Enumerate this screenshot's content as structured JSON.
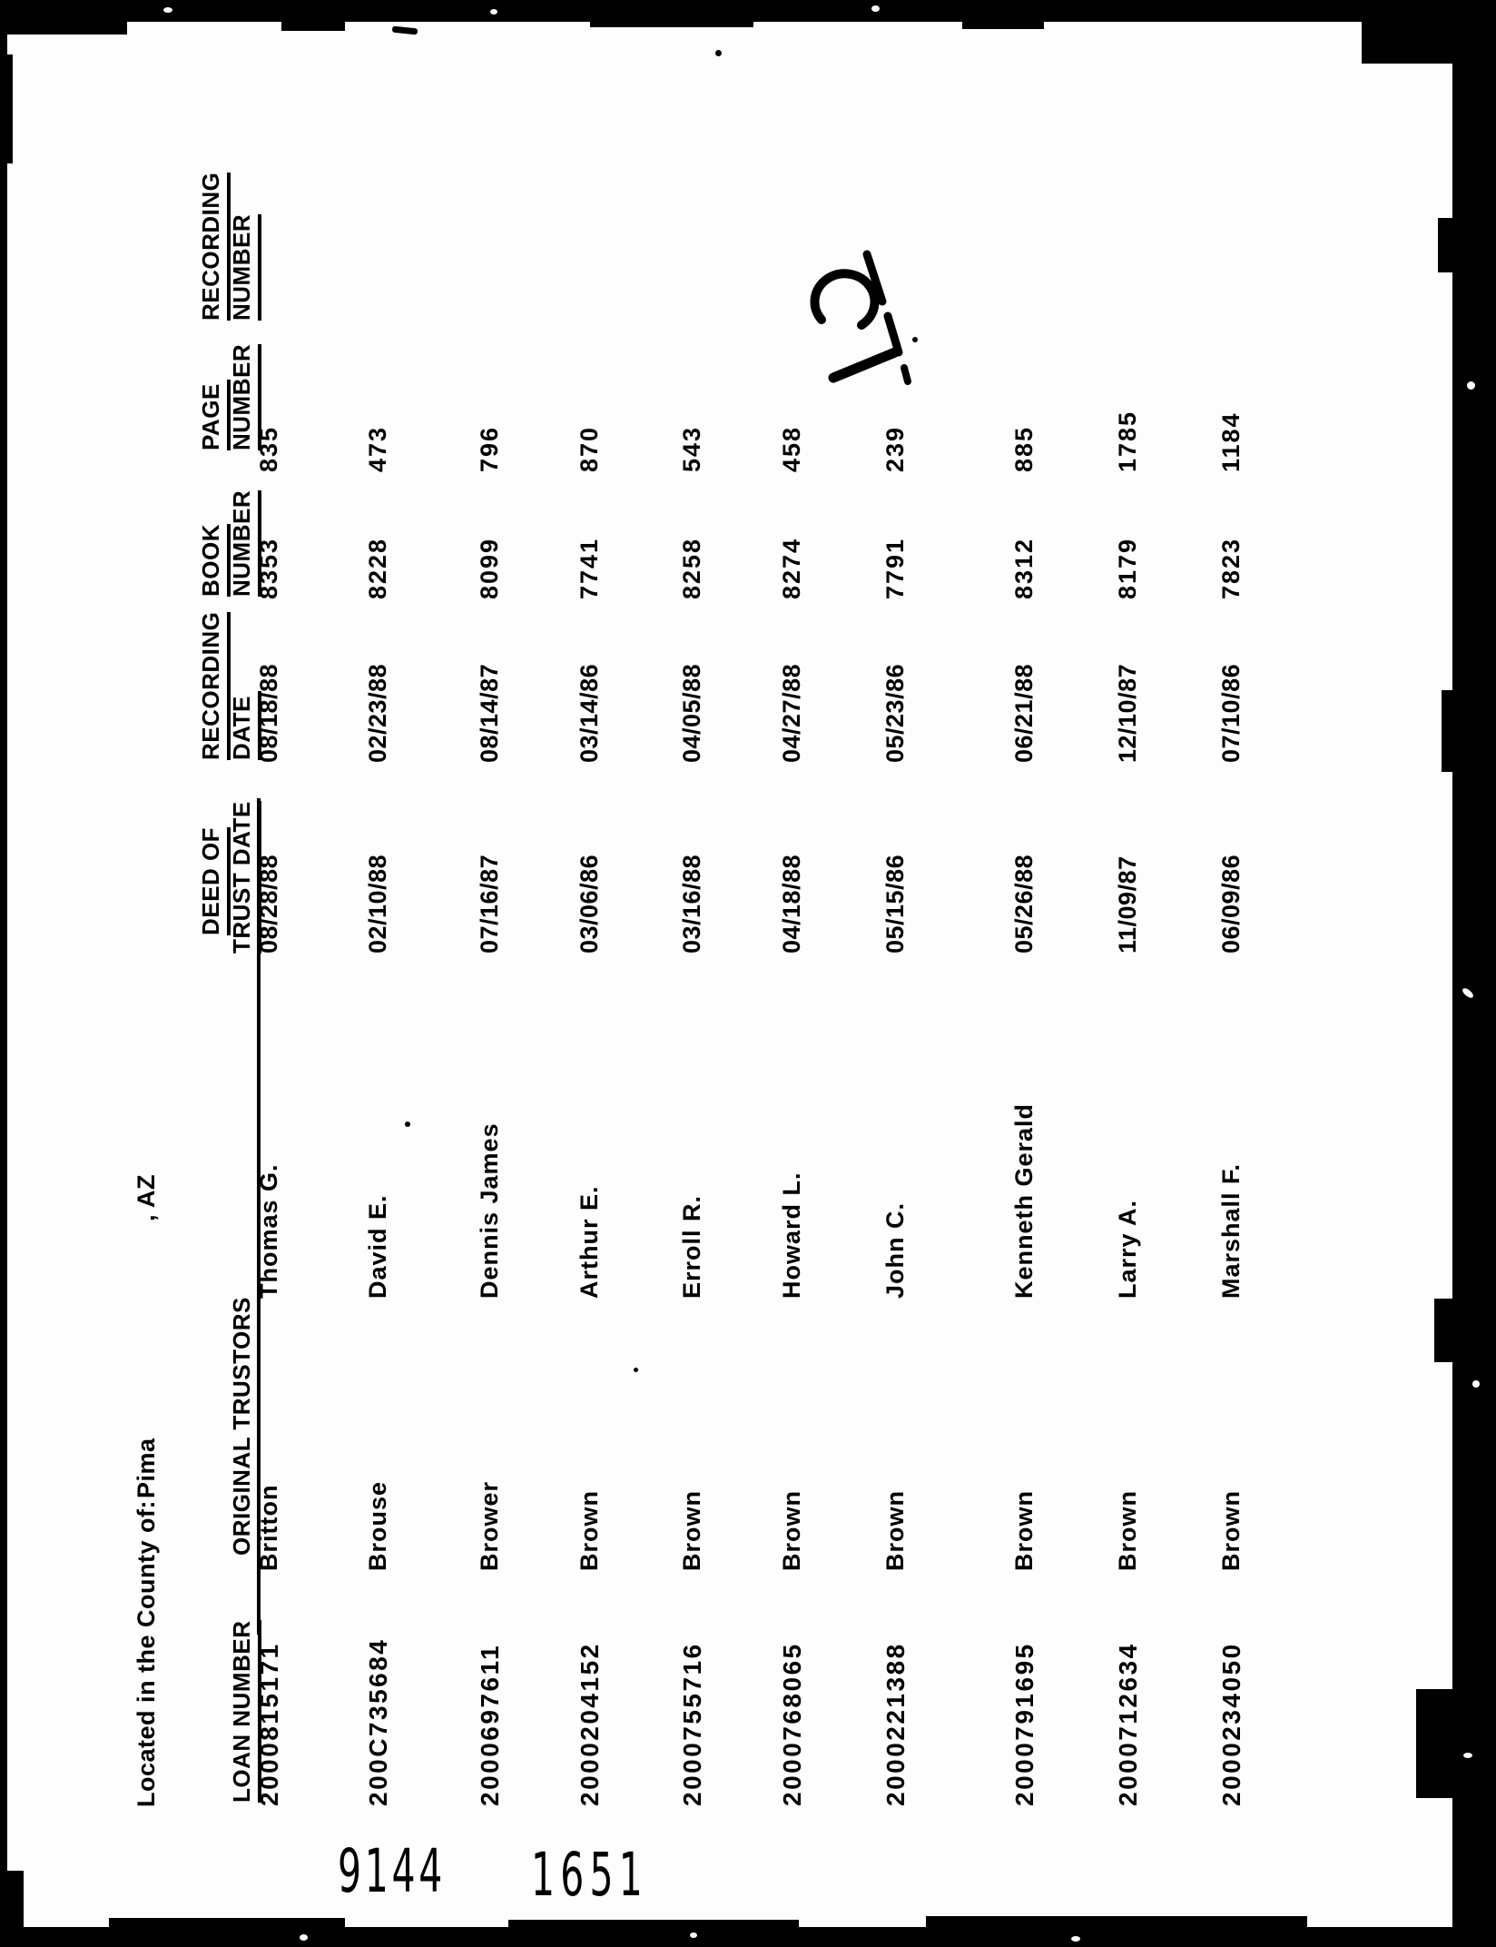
{
  "county_line": {
    "label": "Located in the County of:",
    "county": "Pima",
    "state_suffix": ", AZ"
  },
  "table": {
    "headers": {
      "loan_number": "LOAN NUMBER",
      "original_trustors": "ORIGINAL TRUSTORS",
      "deed_line1": "DEED OF",
      "deed_line2": "TRUST DATE",
      "recording_date_line1": "RECORDING",
      "recording_date_line2": "DATE",
      "book_line1": "BOOK",
      "book_line2": "NUMBER",
      "page_line1": "PAGE",
      "page_line2": "NUMBER",
      "recording_number_line1": "RECORDING",
      "recording_number_line2": "NUMBER"
    },
    "rows": [
      {
        "loan_number": "2000815171",
        "last_name": "Britton",
        "first_name": "Thomas G.",
        "deed_date": "08/28/88",
        "recording_date": "08/18/88",
        "book_number": "8353",
        "page_number": "835",
        "recording_number": ""
      },
      {
        "loan_number": "200C735684",
        "last_name": "Brouse",
        "first_name": "David E.",
        "deed_date": "02/10/88",
        "recording_date": "02/23/88",
        "book_number": "8228",
        "page_number": "473",
        "recording_number": ""
      },
      {
        "loan_number": "2000697611",
        "last_name": "Brower",
        "first_name": "Dennis James",
        "deed_date": "07/16/87",
        "recording_date": "08/14/87",
        "book_number": "8099",
        "page_number": "796",
        "recording_number": ""
      },
      {
        "loan_number": "2000204152",
        "last_name": "Brown",
        "first_name": "Arthur E.",
        "deed_date": "03/06/86",
        "recording_date": "03/14/86",
        "book_number": "7741",
        "page_number": "870",
        "recording_number": ""
      },
      {
        "loan_number": "2000755716",
        "last_name": "Brown",
        "first_name": "Erroll R.",
        "deed_date": "03/16/88",
        "recording_date": "04/05/88",
        "book_number": "8258",
        "page_number": "543",
        "recording_number": ""
      },
      {
        "loan_number": "2000768065",
        "last_name": "Brown",
        "first_name": "Howard L.",
        "deed_date": "04/18/88",
        "recording_date": "04/27/88",
        "book_number": "8274",
        "page_number": "458",
        "recording_number": ""
      },
      {
        "loan_number": "2000221388",
        "last_name": "Brown",
        "first_name": "John C.",
        "deed_date": "05/15/86",
        "recording_date": "05/23/86",
        "book_number": "7791",
        "page_number": "239",
        "recording_number": ""
      },
      {
        "loan_number": "2000791695",
        "last_name": "Brown",
        "first_name": "Kenneth Gerald",
        "deed_date": "05/26/88",
        "recording_date": "06/21/88",
        "book_number": "8312",
        "page_number": "885",
        "recording_number": ""
      },
      {
        "loan_number": "2000712634",
        "last_name": "Brown",
        "first_name": "Larry A.",
        "deed_date": "11/09/87",
        "recording_date": "12/10/87",
        "book_number": "8179",
        "page_number": "1785",
        "recording_number": ""
      },
      {
        "loan_number": "2000234050",
        "last_name": "Brown",
        "first_name": "Marshall F.",
        "deed_date": "06/09/86",
        "recording_date": "07/10/86",
        "book_number": "7823",
        "page_number": "1184",
        "recording_number": ""
      }
    ]
  },
  "annotations": {
    "handwritten_page_number": "10",
    "stamp_left": "9144",
    "stamp_right": "1651"
  },
  "colors": {
    "ink": "#000000",
    "paper": "#fdfdfd"
  }
}
